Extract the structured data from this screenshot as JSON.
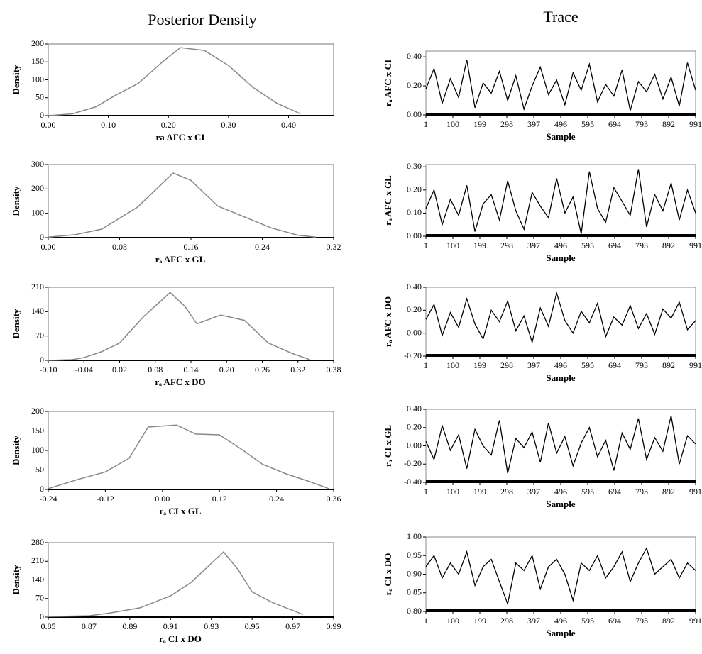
{
  "headings": [
    "Posterior Density",
    "Trace"
  ],
  "chart_data": [
    {
      "type": "line",
      "ylabel": "Density",
      "xlabel": "ra  AFC x CI",
      "x": [
        0.0,
        0.04,
        0.08,
        0.11,
        0.15,
        0.19,
        0.22,
        0.26,
        0.3,
        0.34,
        0.38,
        0.42
      ],
      "values": [
        0,
        5,
        25,
        55,
        90,
        150,
        190,
        182,
        140,
        80,
        35,
        5
      ],
      "xlim": [
        0,
        0.475
      ],
      "xticks": [
        {
          "value": 0,
          "label": "0.00"
        },
        {
          "value": 0.1,
          "label": "0.10"
        },
        {
          "value": 0.2,
          "label": "0.20"
        },
        {
          "value": 0.3,
          "label": "0.30"
        },
        {
          "value": 0.4,
          "label": "0.40"
        }
      ],
      "ylim": [
        0,
        200
      ],
      "yticks": [
        0,
        50,
        100,
        150,
        200
      ],
      "color": "#888888"
    },
    {
      "type": "line",
      "ylabel": "Density",
      "xlabel": "rₐ  AFC x GL",
      "x": [
        0,
        0.03,
        0.06,
        0.1,
        0.14,
        0.16,
        0.19,
        0.22,
        0.25,
        0.28,
        0.3
      ],
      "values": [
        2,
        12,
        35,
        125,
        265,
        235,
        130,
        85,
        40,
        10,
        2
      ],
      "xlim": [
        0,
        0.32
      ],
      "xticks": [
        {
          "value": 0,
          "label": "0.00"
        },
        0.08,
        0.16,
        0.24,
        0.32
      ],
      "ylim": [
        0,
        300
      ],
      "yticks": [
        0,
        100,
        200,
        300
      ],
      "color": "#888888"
    },
    {
      "type": "line",
      "ylabel": "Density",
      "xlabel": "rₐ  AFC x DO",
      "x": [
        -0.1,
        -0.06,
        -0.04,
        -0.01,
        0.02,
        0.06,
        0.105,
        0.13,
        0.15,
        0.19,
        0.23,
        0.27,
        0.31,
        0.34
      ],
      "values": [
        0,
        2,
        8,
        25,
        50,
        125,
        195,
        155,
        105,
        130,
        115,
        50,
        20,
        2
      ],
      "xlim": [
        -0.1,
        0.38
      ],
      "xticks": [
        {
          "value": -0.1,
          "label": "-0.10"
        },
        -0.04,
        0.02,
        0.08,
        0.14,
        {
          "value": 0.2,
          "label": "0.20"
        },
        0.26,
        0.32,
        0.38
      ],
      "ylim": [
        0,
        210
      ],
      "yticks": [
        0,
        70,
        140,
        210
      ],
      "color": "#888888"
    },
    {
      "type": "line",
      "ylabel": "Density",
      "xlabel": "rₐ  CI x GL",
      "x": [
        -0.24,
        -0.18,
        -0.12,
        -0.07,
        -0.03,
        0.03,
        0.07,
        0.12,
        0.17,
        0.21,
        0.26,
        0.31,
        0.35
      ],
      "values": [
        2,
        25,
        45,
        80,
        160,
        165,
        142,
        140,
        100,
        65,
        40,
        20,
        2
      ],
      "xlim": [
        -0.24,
        0.36
      ],
      "xticks": [
        -0.24,
        -0.12,
        {
          "value": 0,
          "label": "0.00"
        },
        0.12,
        0.24,
        0.36
      ],
      "ylim": [
        0,
        200
      ],
      "yticks": [
        0,
        50,
        100,
        150,
        200
      ],
      "color": "#888888"
    },
    {
      "type": "line",
      "ylabel": "Density",
      "xlabel": "rₐ  CI x DO",
      "x": [
        0.85,
        0.87,
        0.88,
        0.895,
        0.91,
        0.92,
        0.936,
        0.943,
        0.95,
        0.96,
        0.975
      ],
      "values": [
        2,
        5,
        15,
        35,
        80,
        130,
        245,
        180,
        95,
        55,
        10
      ],
      "xlim": [
        0.85,
        0.99
      ],
      "xticks": [
        0.85,
        0.87,
        0.89,
        0.91,
        0.93,
        0.95,
        0.97,
        0.99
      ],
      "ylim": [
        0,
        280
      ],
      "yticks": [
        0,
        70,
        140,
        210,
        280
      ],
      "color": "#888888"
    },
    {
      "type": "trace",
      "ylabel": "rₐ  AFC x CI",
      "xlabel": "Sample",
      "x": [
        1,
        31,
        61,
        91,
        121,
        151,
        181,
        211,
        241,
        271,
        301,
        331,
        361,
        391,
        421,
        451,
        481,
        511,
        541,
        571,
        601,
        631,
        661,
        691,
        721,
        751,
        781,
        811,
        841,
        871,
        901,
        931,
        961,
        991
      ],
      "values": [
        0.18,
        0.32,
        0.08,
        0.25,
        0.12,
        0.38,
        0.05,
        0.22,
        0.15,
        0.3,
        0.1,
        0.27,
        0.04,
        0.2,
        0.33,
        0.14,
        0.24,
        0.07,
        0.29,
        0.17,
        0.35,
        0.09,
        0.21,
        0.13,
        0.31,
        0.03,
        0.23,
        0.16,
        0.28,
        0.11,
        0.26,
        0.06,
        0.36,
        0.17
      ],
      "xlim": [
        1,
        991
      ],
      "xticks": [
        1,
        100,
        199,
        298,
        397,
        496,
        595,
        694,
        793,
        892,
        991
      ],
      "ylim": [
        0,
        0.44
      ],
      "yticks": [
        {
          "value": 0,
          "label": "0.00"
        },
        {
          "value": 0.2,
          "label": "0.20"
        },
        {
          "value": 0.4,
          "label": "0.40"
        }
      ],
      "color": "#000000"
    },
    {
      "type": "trace",
      "ylabel": "rₐ  AFC x GL",
      "xlabel": "Sample",
      "x": [
        1,
        31,
        61,
        91,
        121,
        151,
        181,
        211,
        241,
        271,
        301,
        331,
        361,
        391,
        421,
        451,
        481,
        511,
        541,
        571,
        601,
        631,
        661,
        691,
        721,
        751,
        781,
        811,
        841,
        871,
        901,
        931,
        961,
        991
      ],
      "values": [
        0.12,
        0.2,
        0.05,
        0.16,
        0.09,
        0.22,
        0.02,
        0.14,
        0.18,
        0.07,
        0.24,
        0.11,
        0.03,
        0.19,
        0.13,
        0.08,
        0.25,
        0.1,
        0.17,
        0.01,
        0.28,
        0.12,
        0.06,
        0.21,
        0.15,
        0.09,
        0.29,
        0.04,
        0.18,
        0.11,
        0.23,
        0.07,
        0.2,
        0.1
      ],
      "xlim": [
        1,
        991
      ],
      "xticks": [
        1,
        100,
        199,
        298,
        397,
        496,
        595,
        694,
        793,
        892,
        991
      ],
      "ylim": [
        0,
        0.31
      ],
      "yticks": [
        {
          "value": 0,
          "label": "0.00"
        },
        {
          "value": 0.1,
          "label": "0.10"
        },
        {
          "value": 0.2,
          "label": "0.20"
        },
        {
          "value": 0.3,
          "label": "0.30"
        }
      ],
      "color": "#000000"
    },
    {
      "type": "trace",
      "ylabel": "rₐ  AFC x DO",
      "xlabel": "Sample",
      "x": [
        1,
        31,
        61,
        91,
        121,
        151,
        181,
        211,
        241,
        271,
        301,
        331,
        361,
        391,
        421,
        451,
        481,
        511,
        541,
        571,
        601,
        631,
        661,
        691,
        721,
        751,
        781,
        811,
        841,
        871,
        901,
        931,
        961,
        991
      ],
      "values": [
        0.12,
        0.25,
        -0.02,
        0.18,
        0.05,
        0.3,
        0.08,
        -0.05,
        0.2,
        0.1,
        0.28,
        0.02,
        0.15,
        -0.08,
        0.22,
        0.06,
        0.35,
        0.11,
        0.0,
        0.19,
        0.09,
        0.26,
        -0.03,
        0.14,
        0.07,
        0.24,
        0.04,
        0.17,
        -0.01,
        0.21,
        0.13,
        0.27,
        0.03,
        0.11
      ],
      "xlim": [
        1,
        991
      ],
      "xticks": [
        1,
        100,
        199,
        298,
        397,
        496,
        595,
        694,
        793,
        892,
        991
      ],
      "ylim": [
        -0.2,
        0.4
      ],
      "yticks": [
        {
          "value": -0.2,
          "label": "-0.20"
        },
        {
          "value": 0,
          "label": "0.00"
        },
        {
          "value": 0.2,
          "label": "0.20"
        },
        {
          "value": 0.4,
          "label": "0.40"
        }
      ],
      "color": "#000000"
    },
    {
      "type": "trace",
      "ylabel": "rₐ  CI x GL",
      "xlabel": "Sample",
      "x": [
        1,
        31,
        61,
        91,
        121,
        151,
        181,
        211,
        241,
        271,
        301,
        331,
        361,
        391,
        421,
        451,
        481,
        511,
        541,
        571,
        601,
        631,
        661,
        691,
        721,
        751,
        781,
        811,
        841,
        871,
        901,
        931,
        961,
        991
      ],
      "values": [
        0.05,
        -0.15,
        0.22,
        -0.05,
        0.12,
        -0.25,
        0.18,
        0.0,
        -0.1,
        0.28,
        -0.3,
        0.08,
        -0.02,
        0.15,
        -0.18,
        0.25,
        -0.08,
        0.1,
        -0.22,
        0.03,
        0.2,
        -0.12,
        0.06,
        -0.27,
        0.14,
        -0.04,
        0.3,
        -0.15,
        0.09,
        -0.06,
        0.33,
        -0.2,
        0.11,
        0.02
      ],
      "xlim": [
        1,
        991
      ],
      "xticks": [
        1,
        100,
        199,
        298,
        397,
        496,
        595,
        694,
        793,
        892,
        991
      ],
      "ylim": [
        -0.4,
        0.4
      ],
      "yticks": [
        {
          "value": -0.4,
          "label": "-0.40"
        },
        {
          "value": -0.2,
          "label": "-0.20"
        },
        {
          "value": 0,
          "label": "0.00"
        },
        {
          "value": 0.2,
          "label": "0.20"
        },
        {
          "value": 0.4,
          "label": "0.40"
        }
      ],
      "color": "#000000"
    },
    {
      "type": "trace",
      "ylabel": "rₐ  CI x DO",
      "xlabel": "Sample",
      "x": [
        1,
        31,
        61,
        91,
        121,
        151,
        181,
        211,
        241,
        271,
        301,
        331,
        361,
        391,
        421,
        451,
        481,
        511,
        541,
        571,
        601,
        631,
        661,
        691,
        721,
        751,
        781,
        811,
        841,
        871,
        901,
        931,
        961,
        991
      ],
      "values": [
        0.92,
        0.95,
        0.89,
        0.93,
        0.9,
        0.96,
        0.87,
        0.92,
        0.94,
        0.88,
        0.82,
        0.93,
        0.91,
        0.95,
        0.86,
        0.92,
        0.94,
        0.9,
        0.83,
        0.93,
        0.91,
        0.95,
        0.89,
        0.92,
        0.96,
        0.88,
        0.93,
        0.97,
        0.9,
        0.92,
        0.94,
        0.89,
        0.93,
        0.91
      ],
      "xlim": [
        1,
        991
      ],
      "xticks": [
        1,
        100,
        199,
        298,
        397,
        496,
        595,
        694,
        793,
        892,
        991
      ],
      "ylim": [
        0.8,
        1.0
      ],
      "yticks": [
        {
          "value": 0.8,
          "label": "0.80"
        },
        0.85,
        {
          "value": 0.9,
          "label": "0.90"
        },
        0.95,
        {
          "value": 1.0,
          "label": "1.00"
        }
      ],
      "color": "#000000"
    }
  ]
}
